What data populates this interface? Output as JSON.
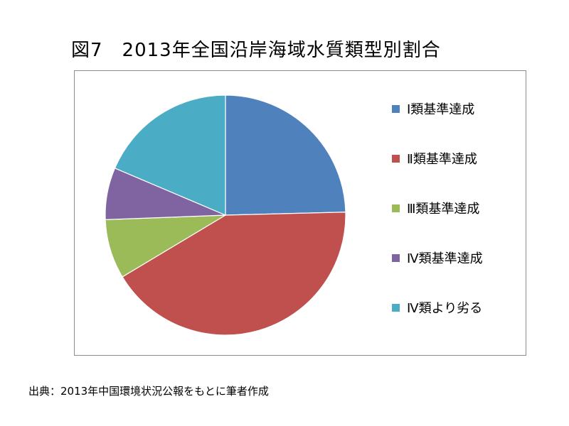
{
  "page": {
    "title": "図7　2013年全国沿岸海域水質類型別割合",
    "source": "出典：2013年中国環境状況公報をもとに筆者作成"
  },
  "chart_data": {
    "type": "pie",
    "title": "図7　2013年全国沿岸海域水質類型別割合",
    "categories": [
      "Ⅰ類基準達成",
      "Ⅱ類基準達成",
      "Ⅲ類基準達成",
      "Ⅳ類基準達成",
      "Ⅳ類より劣る"
    ],
    "values": [
      24.6,
      41.8,
      8.0,
      7.0,
      18.6
    ],
    "colors": [
      "#4f81bd",
      "#c0504d",
      "#9bbb59",
      "#8064a2",
      "#4bacc6"
    ],
    "start_angle": "12 o'clock",
    "direction": "clockwise",
    "legend": "right"
  }
}
